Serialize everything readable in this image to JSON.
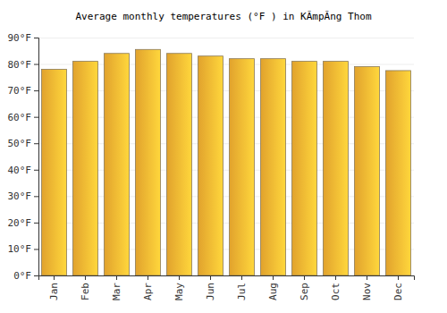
{
  "chart_data": {
    "type": "bar",
    "title": "Average monthly temperatures (°F ) in KÃmpĂng Thom",
    "categories": [
      "Jan",
      "Feb",
      "Mar",
      "Apr",
      "May",
      "Jun",
      "Jul",
      "Aug",
      "Sep",
      "Oct",
      "Nov",
      "Dec"
    ],
    "values": [
      78,
      81,
      84,
      85.5,
      84,
      83,
      82,
      82,
      81,
      81,
      79,
      77.5
    ],
    "color": "#ffb733",
    "ylim": [
      0,
      90
    ],
    "yticks": [
      {
        "value": 0,
        "label": "0°F"
      },
      {
        "value": 10,
        "label": "10°F"
      },
      {
        "value": 20,
        "label": "20°F"
      },
      {
        "value": 30,
        "label": "30°F"
      },
      {
        "value": 40,
        "label": "40°F"
      },
      {
        "value": 50,
        "label": "50°F"
      },
      {
        "value": 60,
        "label": "60°F"
      },
      {
        "value": 70,
        "label": "70°F"
      },
      {
        "value": 80,
        "label": "80°F"
      },
      {
        "value": 90,
        "label": "90°F"
      }
    ],
    "grid": true
  }
}
